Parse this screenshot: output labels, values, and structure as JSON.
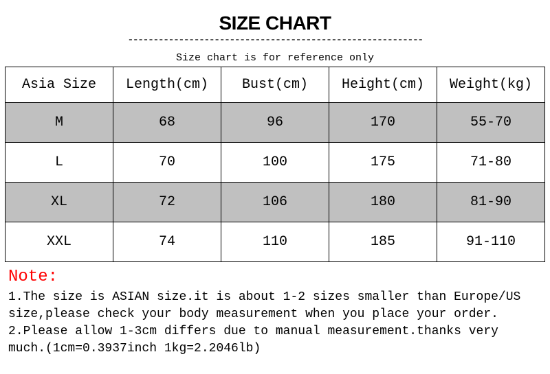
{
  "title": "SIZE CHART",
  "divider": "----------------------------------------------------------",
  "subtitle": "Size chart is for reference only",
  "table": {
    "headers": [
      "Asia Size",
      "Length(cm)",
      "Bust(cm)",
      "Height(cm)",
      "Weight(kg)"
    ],
    "rows": [
      [
        "M",
        "68",
        "96",
        "170",
        "55-70"
      ],
      [
        "L",
        "70",
        "100",
        "175",
        "71-80"
      ],
      [
        "XL",
        "72",
        "106",
        "180",
        "81-90"
      ],
      [
        "XXL",
        "74",
        "110",
        "185",
        "91-110"
      ]
    ],
    "stripe_color": "#c0c0c0"
  },
  "note": {
    "title": "Note:",
    "title_color": "#ff0000",
    "lines": [
      "1.The size is ASIAN size.it is about 1-2 sizes smaller than Europe/US",
      "size,please check your body measurement when you place your order.",
      "2.Please allow 1-3cm differs due to manual measurement.thanks very",
      "much.(1cm=0.3937inch 1kg=2.2046lb)"
    ]
  }
}
